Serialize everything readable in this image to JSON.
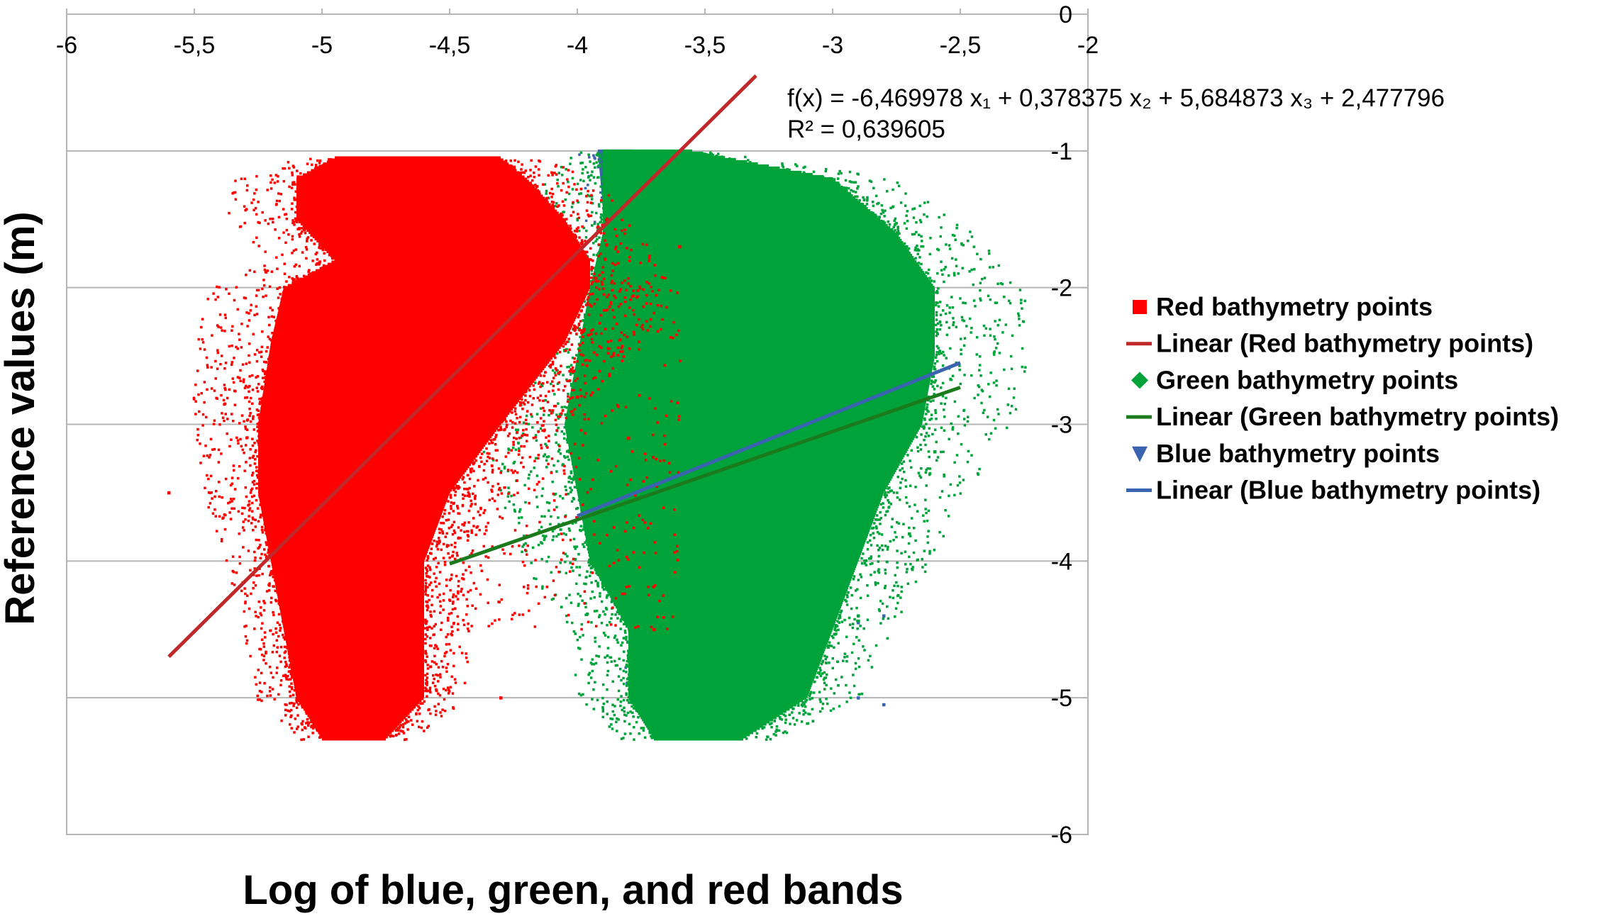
{
  "chart_data": {
    "type": "scatter",
    "title": "",
    "xlabel": "Log of blue, green, and red bands",
    "ylabel": "Reference values (m)",
    "xlim": [
      -6,
      -2
    ],
    "ylim": [
      -6,
      0
    ],
    "x_axis_position": "top",
    "y_axis_position": "right",
    "grid": "horizontal",
    "legend_position": "right",
    "x_ticks": [
      -6,
      -5.5,
      -5,
      -4.5,
      -4,
      -3.5,
      -3,
      -2.5,
      -2
    ],
    "x_tick_labels": [
      "-6",
      "-5,5",
      "-5",
      "-4,5",
      "-4",
      "-3,5",
      "-3",
      "-2,5",
      "-2"
    ],
    "y_ticks": [
      0,
      -1,
      -2,
      -3,
      -4,
      -5,
      -6
    ],
    "y_tick_labels": [
      "0",
      "-1",
      "-2",
      "-3",
      "-4",
      "-5",
      "-6"
    ],
    "equation": "f(x) = -6,469978 x₁ + 0,378375 x₂ + 5,684873 x₃ + 2,477796",
    "r_squared": "R² = 0,639605",
    "series": [
      {
        "name": "Red bathymetry points",
        "marker": "square",
        "color": "#ff0000",
        "envelope": [
          {
            "y": -1.05,
            "xmin": -4.95,
            "xmax": -4.3
          },
          {
            "y": -1.2,
            "xmin": -5.1,
            "xmax": -4.2
          },
          {
            "y": -1.5,
            "xmin": -5.1,
            "xmax": -4.05
          },
          {
            "y": -1.8,
            "xmin": -4.95,
            "xmax": -3.95
          },
          {
            "y": -2.0,
            "xmin": -5.15,
            "xmax": -3.95
          },
          {
            "y": -2.4,
            "xmin": -5.2,
            "xmax": -4.05
          },
          {
            "y": -3.0,
            "xmin": -5.25,
            "xmax": -4.3
          },
          {
            "y": -3.5,
            "xmin": -5.25,
            "xmax": -4.5
          },
          {
            "y": -4.0,
            "xmin": -5.2,
            "xmax": -4.6
          },
          {
            "y": -4.5,
            "xmin": -5.15,
            "xmax": -4.6
          },
          {
            "y": -5.0,
            "xmin": -5.1,
            "xmax": -4.6
          },
          {
            "y": -5.3,
            "xmin": -5.0,
            "xmax": -4.75
          }
        ],
        "outliers": [
          [
            -5.6,
            -3.5
          ],
          [
            -4.0,
            -2.8
          ],
          [
            -3.8,
            -3.1
          ],
          [
            -3.7,
            -4.5
          ],
          [
            -3.6,
            -1.7
          ],
          [
            -4.3,
            -5.0
          ]
        ]
      },
      {
        "name": "Green bathymetry points",
        "marker": "diamond",
        "color": "#00a33a",
        "envelope": [
          {
            "y": -1.0,
            "xmin": -3.9,
            "xmax": -3.55
          },
          {
            "y": -1.2,
            "xmin": -3.9,
            "xmax": -3.0
          },
          {
            "y": -1.6,
            "xmin": -3.9,
            "xmax": -2.75
          },
          {
            "y": -2.0,
            "xmin": -3.95,
            "xmax": -2.6
          },
          {
            "y": -2.5,
            "xmin": -4.0,
            "xmax": -2.6
          },
          {
            "y": -3.0,
            "xmin": -4.05,
            "xmax": -2.65
          },
          {
            "y": -3.5,
            "xmin": -4.0,
            "xmax": -2.8
          },
          {
            "y": -4.0,
            "xmin": -3.95,
            "xmax": -2.9
          },
          {
            "y": -4.5,
            "xmin": -3.8,
            "xmax": -3.0
          },
          {
            "y": -5.0,
            "xmin": -3.8,
            "xmax": -3.1
          },
          {
            "y": -5.3,
            "xmin": -3.7,
            "xmax": -3.35
          }
        ],
        "outliers": [
          [
            -2.6,
            -3.2
          ],
          [
            -2.7,
            -3.8
          ],
          [
            -3.05,
            -4.7
          ],
          [
            -2.9,
            -4.4
          ]
        ]
      },
      {
        "name": "Blue bathymetry points",
        "marker": "triangle-down",
        "color": "#3a63b0",
        "envelope": [
          {
            "y": -1.0,
            "xmin": -3.92,
            "xmax": -3.78
          },
          {
            "y": -1.4,
            "xmin": -3.9,
            "xmax": -3.78
          },
          {
            "y": -1.8,
            "xmin": -3.85,
            "xmax": -3.6
          },
          {
            "y": -5.2,
            "xmin": -3.7,
            "xmax": -3.45
          }
        ],
        "outliers": [
          [
            -2.9,
            -4.45
          ],
          [
            -2.8,
            -4.4
          ],
          [
            -2.8,
            -5.05
          ],
          [
            -2.9,
            -5.0
          ]
        ]
      }
    ],
    "trendlines": [
      {
        "name": "Linear (Red bathymetry points)",
        "color": "#c0282a",
        "x": [
          -5.6,
          -3.3
        ],
        "y": [
          -4.7,
          -0.45
        ]
      },
      {
        "name": "Linear (Green bathymetry points)",
        "color": "#1b7a1b",
        "x": [
          -4.5,
          -2.5
        ],
        "y": [
          -4.02,
          -2.73
        ]
      },
      {
        "name": "Linear (Blue bathymetry points)",
        "color": "#3a63b0",
        "x": [
          -4.0,
          -2.5
        ],
        "y": [
          -3.67,
          -2.55
        ]
      }
    ]
  },
  "legend": [
    {
      "label": "Red bathymetry points",
      "kind": "marker",
      "shape": "square",
      "color": "#ff0000"
    },
    {
      "label": "Linear (Red bathymetry points)",
      "kind": "line",
      "color": "#c0282a"
    },
    {
      "label": "Green bathymetry points",
      "kind": "marker",
      "shape": "diamond",
      "color": "#00a33a"
    },
    {
      "label": "Linear (Green bathymetry points)",
      "kind": "line",
      "color": "#1b7a1b"
    },
    {
      "label": "Blue bathymetry points",
      "kind": "marker",
      "shape": "triangle-down",
      "color": "#3a63b0"
    },
    {
      "label": "Linear (Blue bathymetry points)",
      "kind": "line",
      "color": "#3a63b0"
    }
  ]
}
